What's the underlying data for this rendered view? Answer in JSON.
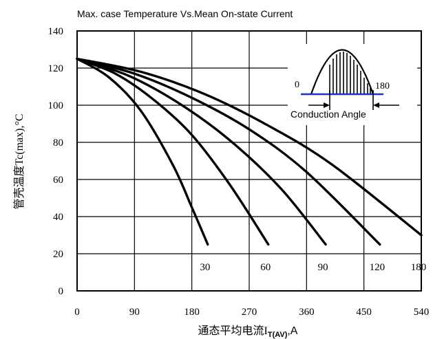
{
  "chart_data": {
    "type": "line",
    "title": "Max. case Temperature Vs.Mean On-state Current",
    "xlabel_main": "通态平均电流I",
    "xlabel_sub": "T(AV)",
    "xlabel_unit": ",A",
    "ylabel": "管壳温度Tc(max),°C",
    "xlim": [
      0,
      540
    ],
    "ylim": [
      0,
      140
    ],
    "x_ticks": [
      "0",
      "90",
      "180",
      "270",
      "360",
      "450",
      "540"
    ],
    "y_ticks": [
      "0",
      "20",
      "40",
      "60",
      "80",
      "100",
      "120",
      "140"
    ],
    "grid": true,
    "series": [
      {
        "name": "30",
        "x": [
          0,
          50,
          100,
          150,
          180,
          205
        ],
        "y": [
          125,
          115,
          97,
          68,
          45,
          25
        ]
      },
      {
        "name": "60",
        "x": [
          0,
          60,
          120,
          180,
          240,
          300
        ],
        "y": [
          125,
          117,
          103,
          84,
          57,
          25
        ]
      },
      {
        "name": "90",
        "x": [
          0,
          80,
          160,
          240,
          320,
          390
        ],
        "y": [
          125,
          116,
          101,
          81,
          55,
          25
        ]
      },
      {
        "name": "120",
        "x": [
          0,
          90,
          180,
          270,
          360,
          475
        ],
        "y": [
          125,
          117,
          104,
          87,
          64,
          25
        ]
      },
      {
        "name": "180",
        "x": [
          0,
          100,
          200,
          300,
          400,
          540
        ],
        "y": [
          125,
          118,
          106,
          89,
          68,
          30
        ]
      }
    ],
    "inset": {
      "left_label": "0",
      "right_label": "180",
      "caption": "Conduction Angle"
    }
  }
}
